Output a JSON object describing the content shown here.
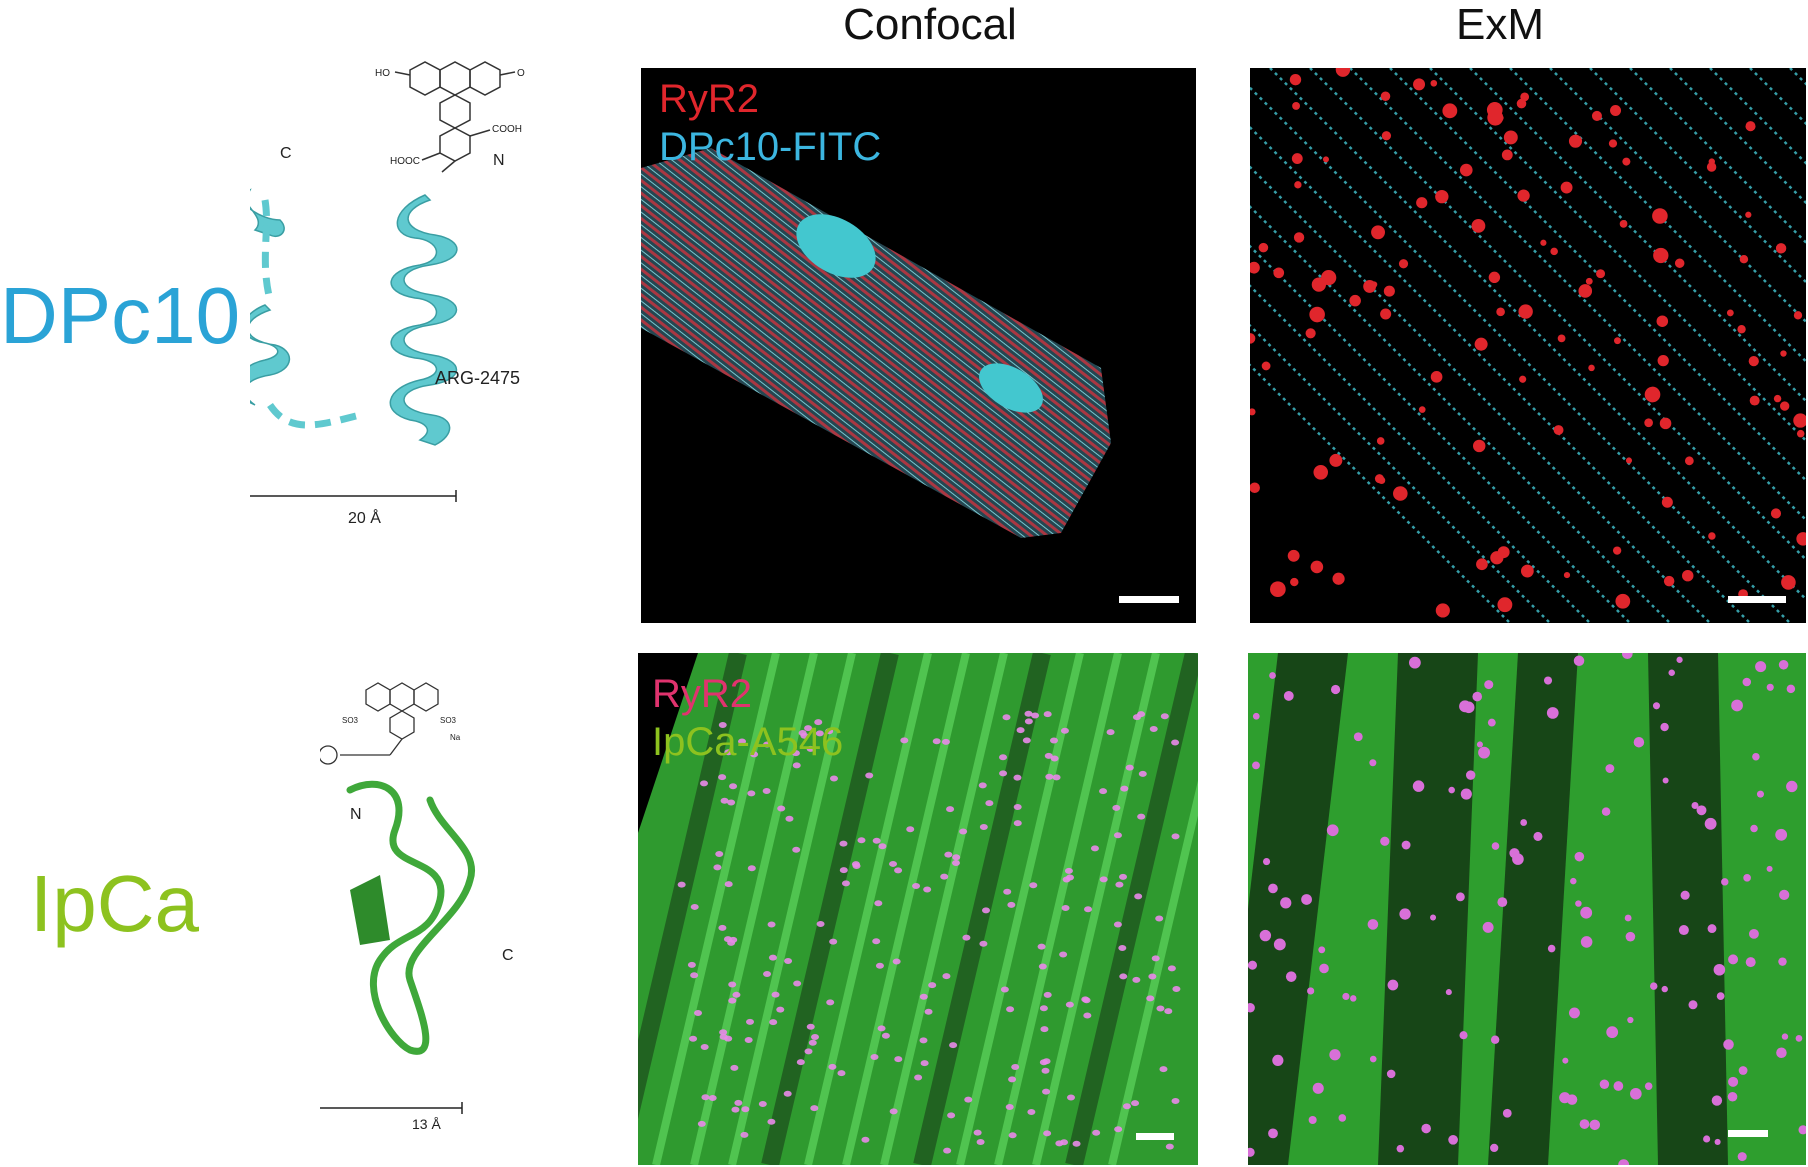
{
  "columns": {
    "confocal": "Confocal",
    "exm": "ExM"
  },
  "rows": [
    {
      "label": "DPc10",
      "label_color": "#2aa3d6",
      "terminal_c": "C",
      "terminal_n": "N",
      "residue": "ARG-2475",
      "scale_label": "20 Å",
      "confocal_labels": [
        "RyR2",
        "DPc10-FITC"
      ],
      "confocal_label_colors": [
        "#e0262c",
        "#3cb6e0"
      ]
    },
    {
      "label": "IpCa",
      "label_color": "#8dc21f",
      "terminal_n": "N",
      "terminal_c": "C",
      "scale_label": "13 Å",
      "confocal_labels": [
        "RyR2",
        "IpCa-A546"
      ],
      "confocal_label_colors": [
        "#e0336e",
        "#8dc21f"
      ]
    }
  ],
  "colors": {
    "cyan_ribbon": "#5fc9cf",
    "green_ribbon": "#3fa83a",
    "ryr2_red": "#e0262c",
    "fitc_cyan": "#48d3e0",
    "magenta": "#e05ce0",
    "green_signal": "#2fbf2f"
  },
  "icons": [
    "fluorescein-structure",
    "alexa546-structure",
    "helix-ribbon",
    "loop-ribbon"
  ]
}
